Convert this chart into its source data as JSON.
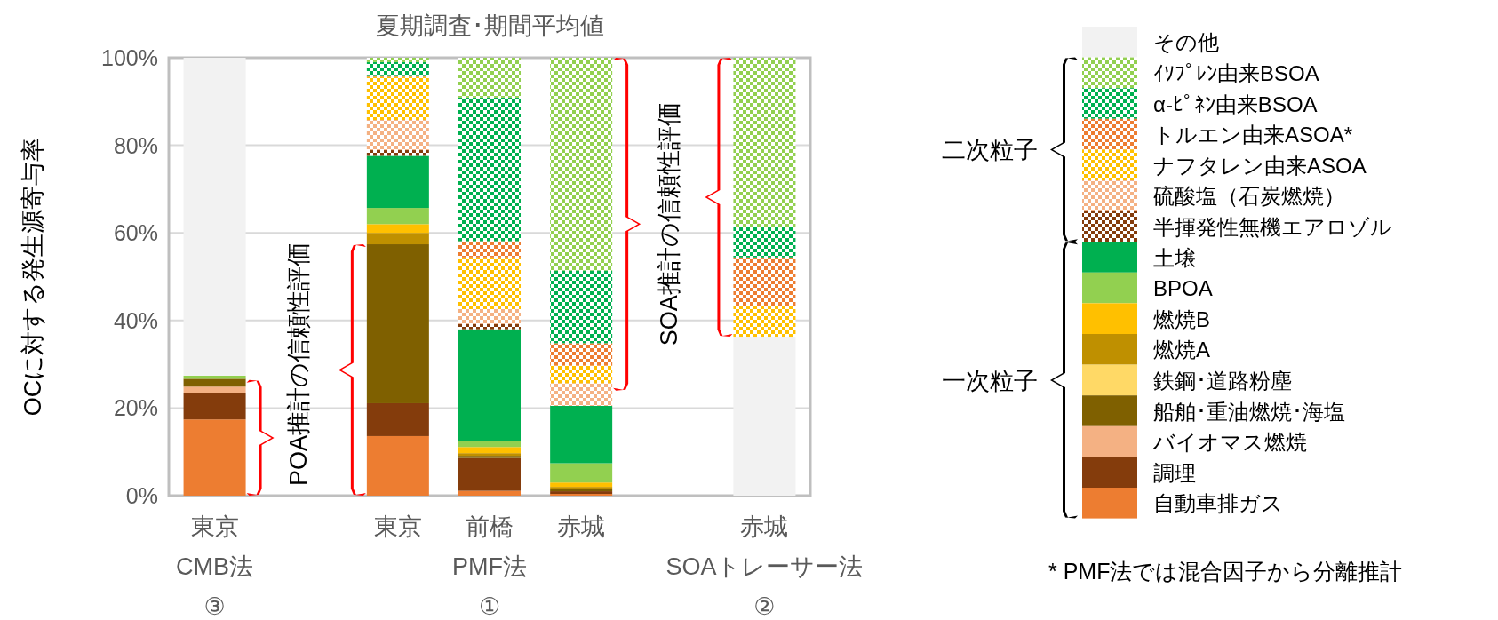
{
  "chart_data": {
    "type": "bar",
    "stacked": true,
    "title": "夏期調査･期間平均値",
    "ylabel": "OCに対する発生源寄与率",
    "categories": [
      "東京\nCMB法\n③",
      null,
      "東京",
      "前橋\nPMF法\n①",
      "赤城",
      null,
      "赤城\nSOAトレーサー法\n②"
    ],
    "ylim": [
      0,
      100
    ],
    "yticks": [
      {
        "value": 0,
        "label": "0%"
      },
      {
        "value": 20,
        "label": "20%"
      },
      {
        "value": 40,
        "label": "40%"
      },
      {
        "value": 60,
        "label": "60%"
      },
      {
        "value": 80,
        "label": "80%"
      },
      {
        "value": 100,
        "label": "100%"
      }
    ],
    "grid": "y",
    "legend": "right",
    "series": [
      {
        "color": "#f2f2f2",
        "values": [
          null,
          null,
          null,
          null,
          null,
          null,
          36.3
        ]
      },
      {
        "name": "自動車排ガス",
        "color": "#ed7d31",
        "values": [
          17.4,
          null,
          13.6,
          1.1,
          0.4,
          null,
          null
        ]
      },
      {
        "name": "調理",
        "color": "#843c0c",
        "values": [
          6.1,
          null,
          7.5,
          7.5,
          0.6,
          null,
          null
        ]
      },
      {
        "name": "バイオマス燃焼",
        "color": "#f4b183",
        "values": [
          1.4,
          null,
          null,
          null,
          null,
          null,
          null
        ]
      },
      {
        "name": "船舶･重油燃焼･海塩",
        "color": "#7f6000",
        "values": [
          1.8,
          null,
          36.3,
          0.5,
          0.5,
          null,
          null
        ]
      },
      {
        "name": "鉄鋼･道路粉塵",
        "color": "#ffd966",
        "values": [
          null,
          null,
          null,
          null,
          null,
          null,
          null
        ]
      },
      {
        "name": "燃焼A",
        "color": "#bf9000",
        "values": [
          null,
          null,
          2.6,
          0.6,
          0.5,
          null,
          null
        ]
      },
      {
        "name": "燃焼B",
        "color": "#ffc000",
        "values": [
          null,
          null,
          2.0,
          1.4,
          1.0,
          null,
          null
        ]
      },
      {
        "name": "BPOA",
        "color": "#92d050",
        "values": [
          0.7,
          null,
          3.7,
          1.4,
          4.4,
          null,
          null
        ]
      },
      {
        "name": "土壌",
        "color": "#00b050",
        "values": [
          null,
          null,
          11.9,
          25.5,
          13.1,
          null,
          null
        ]
      },
      {
        "name": "半揮発性無機エアロゾル",
        "color": "#843c0c",
        "values": [
          null,
          null,
          1.3,
          1.2,
          null,
          null,
          null
        ]
      },
      {
        "name": "硫酸塩（石炭燃焼）",
        "color": "#f4b183",
        "values": [
          null,
          null,
          6.9,
          3.4,
          5.2,
          null,
          null
        ]
      },
      {
        "name": "ナフタレン由来ASOA",
        "color": "#ffc000",
        "values": [
          null,
          null,
          9.8,
          11.8,
          4.0,
          null,
          6.9
        ]
      },
      {
        "name": "トルエン由来ASOA*",
        "color": "#ed7d31",
        "values": [
          null,
          null,
          0.4,
          3.7,
          5.1,
          null,
          11.2
        ]
      },
      {
        "name": "α-ﾋﾟﾈﾝ由来BSOA",
        "color": "#00b050",
        "values": [
          null,
          null,
          3.0,
          32.8,
          16.6,
          null,
          7.0
        ]
      },
      {
        "name": "ｲｿﾌﾟﾚﾝ由来BSOA",
        "color": "#92d050",
        "values": [
          null,
          null,
          1.0,
          9.1,
          48.6,
          null,
          38.6
        ]
      },
      {
        "name": "その他",
        "color": "#f2f2f2",
        "values": [
          72.6,
          null,
          null,
          null,
          null,
          null,
          null
        ]
      }
    ],
    "annotations": [
      "POA推計の信頼性評価",
      "SOA推計の信頼性評価",
      "二次粒子",
      "一次粒子",
      "* PMF法では混合因子から分離推計"
    ]
  }
}
